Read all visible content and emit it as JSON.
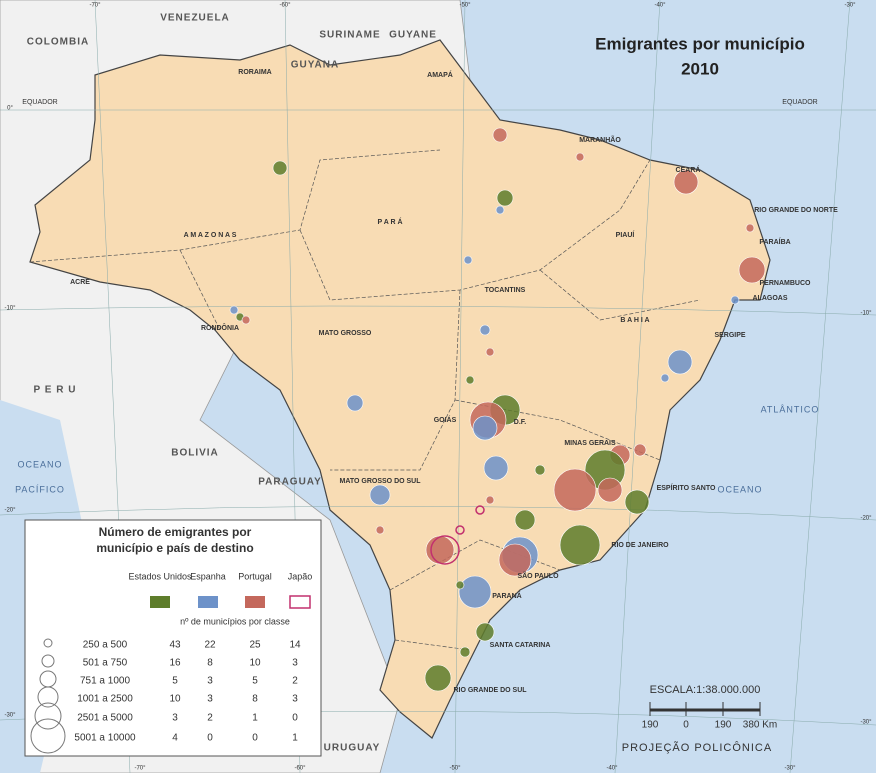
{
  "title": "Emigrantes por município",
  "subtitle": "2010",
  "countries": [
    "VENEZUELA",
    "COLOMBIA",
    "SURINAME",
    "GUYANE",
    "GUYANA",
    "P E R U",
    "BOLIVIA",
    "PARAGUAY",
    "URUGUAY"
  ],
  "oceans": [
    "OCEANO",
    "PACÍFICO",
    "OCEANO",
    "ATLÂNTICO"
  ],
  "states": [
    "RORAIMA",
    "AMAPÁ",
    "A M A Z O N A S",
    "P A R Á",
    "MARANHÃO",
    "CEARÁ",
    "RIO GRANDE DO NORTE",
    "PARAÍBA",
    "PERNAMBUCO",
    "ALAGOAS",
    "SERGIPE",
    "PIAUÍ",
    "B A H I A",
    "TOCANTINS",
    "ACRE",
    "RONDÔNIA",
    "MATO GROSSO",
    "GOIÁS",
    "D.F.",
    "MINAS GERAIS",
    "ESPÍRITO SANTO",
    "MATO GROSSO DO SUL",
    "RIO DE JANEIRO",
    "SÃO PAULO",
    "PARANÁ",
    "SANTA CATARINA",
    "RIO GRANDE DO SUL"
  ],
  "equator": [
    "EQUADOR",
    "EQUADOR"
  ],
  "meridians": [
    "-70°",
    "-60°",
    "-50°",
    "-40°",
    "-30°",
    "-70°",
    "-60°",
    "-50°",
    "-40°",
    "-30°"
  ],
  "parallels": [
    "0°",
    "-10°",
    "-20°",
    "-30°",
    "-10°",
    "-20°",
    "-30°"
  ],
  "legend": {
    "title_lines": [
      "Número de emigrantes por",
      "município e país de destino"
    ],
    "destinations": [
      "Estados Unidos",
      "Espanha",
      "Portugal",
      "Japão"
    ],
    "colors": [
      "#5e7d2b",
      "#6d92c9",
      "#c4685c",
      "#c2306e"
    ],
    "counts_label": "nº de municípios por classe",
    "classes": [
      {
        "label": "250 a 500",
        "counts": [
          43,
          22,
          25,
          14
        ]
      },
      {
        "label": "501 a 750",
        "counts": [
          16,
          8,
          10,
          3
        ]
      },
      {
        "label": "751 a 1000",
        "counts": [
          5,
          3,
          5,
          2
        ]
      },
      {
        "label": "1001 a 2500",
        "counts": [
          10,
          3,
          8,
          3
        ]
      },
      {
        "label": "2501 a 5000",
        "counts": [
          3,
          2,
          1,
          0
        ]
      },
      {
        "label": "5001 a 10000",
        "counts": [
          4,
          0,
          0,
          1
        ]
      }
    ]
  },
  "scale": {
    "title": "ESCALA:1:38.000.000",
    "ticks": [
      "190",
      "0",
      "190",
      "380 Km"
    ],
    "projection": "PROJEÇÃO POLICÔNICA"
  }
}
